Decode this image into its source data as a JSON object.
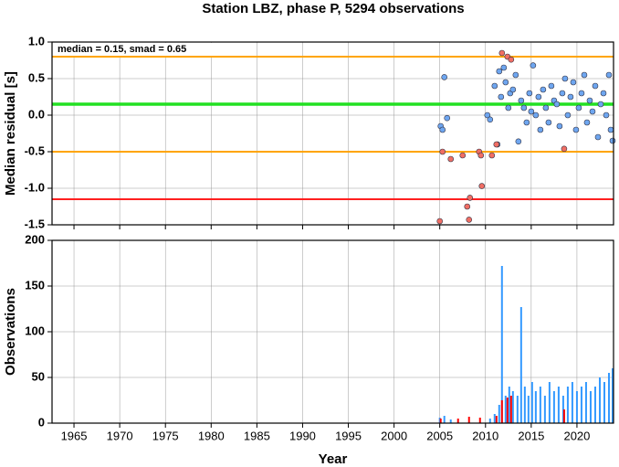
{
  "chart_data": [
    {
      "type": "scatter",
      "title": "Station LBZ, phase P, 5294 observations",
      "ylabel": "Median residual [s]",
      "annotation": "median = 0.15, smad = 0.65",
      "xlim": [
        1962.6,
        2024.0
      ],
      "xticks": [
        1965,
        1970,
        1975,
        1980,
        1985,
        1990,
        1995,
        2000,
        2005,
        2010,
        2015,
        2020
      ],
      "ylim": [
        -1.5,
        1.0
      ],
      "yticks": [
        {
          "value": -1.5,
          "label": "-1.5"
        },
        {
          "value": -1,
          "label": "-1.0"
        },
        {
          "value": -0.5,
          "label": "-0.5"
        },
        {
          "value": 0,
          "label": "0.0"
        },
        {
          "value": 0.5,
          "label": "0.5"
        },
        {
          "value": 1,
          "label": "1.0"
        }
      ],
      "grid": true,
      "hlines": [
        {
          "value": 0.8,
          "color": "#ffa500"
        },
        {
          "value": -0.5,
          "color": "#ffa500"
        },
        {
          "value": 0.15,
          "color": "#22e022"
        },
        {
          "value": -1.15,
          "color": "#ff2020"
        }
      ],
      "series": [
        {
          "color": "#6ea6f0",
          "x": [
            2005.1,
            2005.3,
            2005.5,
            2005.8,
            2010.2,
            2010.5,
            2011.0,
            2011.3,
            2011.5,
            2011.7,
            2012.0,
            2012.2,
            2012.5,
            2012.7,
            2013.0,
            2013.3,
            2013.6,
            2013.9,
            2014.2,
            2014.5,
            2014.8,
            2015.0,
            2015.2,
            2015.5,
            2015.8,
            2016.0,
            2016.3,
            2016.6,
            2016.9,
            2017.2,
            2017.5,
            2017.8,
            2018.1,
            2018.4,
            2018.7,
            2019.0,
            2019.3,
            2019.6,
            2019.9,
            2020.2,
            2020.5,
            2020.8,
            2021.1,
            2021.4,
            2021.7,
            2022.0,
            2022.3,
            2022.6,
            2022.9,
            2023.2,
            2023.5,
            2023.7,
            2023.9
          ],
          "values": [
            -0.15,
            -0.2,
            0.52,
            -0.04,
            0.0,
            -0.06,
            0.4,
            -0.4,
            0.6,
            0.25,
            0.65,
            0.45,
            0.1,
            0.3,
            0.35,
            0.55,
            -0.36,
            0.2,
            0.1,
            -0.1,
            0.3,
            0.05,
            0.68,
            0.0,
            0.25,
            -0.2,
            0.35,
            0.1,
            -0.1,
            0.4,
            0.2,
            0.15,
            -0.15,
            0.3,
            0.5,
            0.0,
            0.25,
            0.45,
            -0.2,
            0.1,
            0.3,
            0.55,
            -0.1,
            0.2,
            0.05,
            0.4,
            -0.3,
            0.15,
            0.3,
            0.0,
            0.55,
            -0.2,
            -0.35
          ]
        },
        {
          "color": "#f06e64",
          "x": [
            2005.0,
            2005.3,
            2006.2,
            2007.5,
            2008.0,
            2008.2,
            2008.3,
            2009.3,
            2009.5,
            2009.6,
            2010.7,
            2011.2,
            2011.8,
            2012.4,
            2012.8,
            2018.6
          ],
          "values": [
            -1.45,
            -0.5,
            -0.6,
            -0.55,
            -1.25,
            -1.43,
            -1.13,
            -0.5,
            -0.55,
            -0.97,
            -0.55,
            -0.4,
            0.85,
            0.8,
            0.76,
            -0.46
          ]
        }
      ]
    },
    {
      "type": "bar",
      "ylabel": "Observations",
      "xlabel": "Year",
      "xlim": [
        1962.6,
        2024.0
      ],
      "xticks": [
        1965,
        1970,
        1975,
        1980,
        1985,
        1990,
        1995,
        2000,
        2005,
        2010,
        2015,
        2020
      ],
      "ylim": [
        0,
        200
      ],
      "yticks": [
        0,
        50,
        100,
        150,
        200
      ],
      "grid": true,
      "series": [
        {
          "color": "#3399ff",
          "x": [
            2005.0,
            2005.5,
            2006.2,
            2010.5,
            2011.0,
            2011.5,
            2011.8,
            2012.2,
            2012.6,
            2013.0,
            2013.5,
            2013.9,
            2014.3,
            2014.7,
            2015.1,
            2015.5,
            2016.0,
            2016.5,
            2017.0,
            2017.5,
            2018.0,
            2018.5,
            2019.0,
            2019.5,
            2020.0,
            2020.5,
            2021.0,
            2021.5,
            2022.0,
            2022.5,
            2023.0,
            2023.5,
            2023.9
          ],
          "values": [
            6,
            8,
            4,
            5,
            10,
            20,
            172,
            30,
            40,
            35,
            30,
            127,
            40,
            30,
            45,
            35,
            40,
            30,
            45,
            35,
            40,
            30,
            40,
            45,
            35,
            40,
            45,
            35,
            40,
            50,
            45,
            55,
            60
          ]
        },
        {
          "color": "#ff0000",
          "x": [
            2005.1,
            2007.0,
            2008.2,
            2009.4,
            2011.2,
            2011.8,
            2012.4,
            2012.8,
            2018.6
          ],
          "values": [
            5,
            5,
            7,
            6,
            8,
            25,
            28,
            30,
            15
          ]
        }
      ]
    }
  ]
}
